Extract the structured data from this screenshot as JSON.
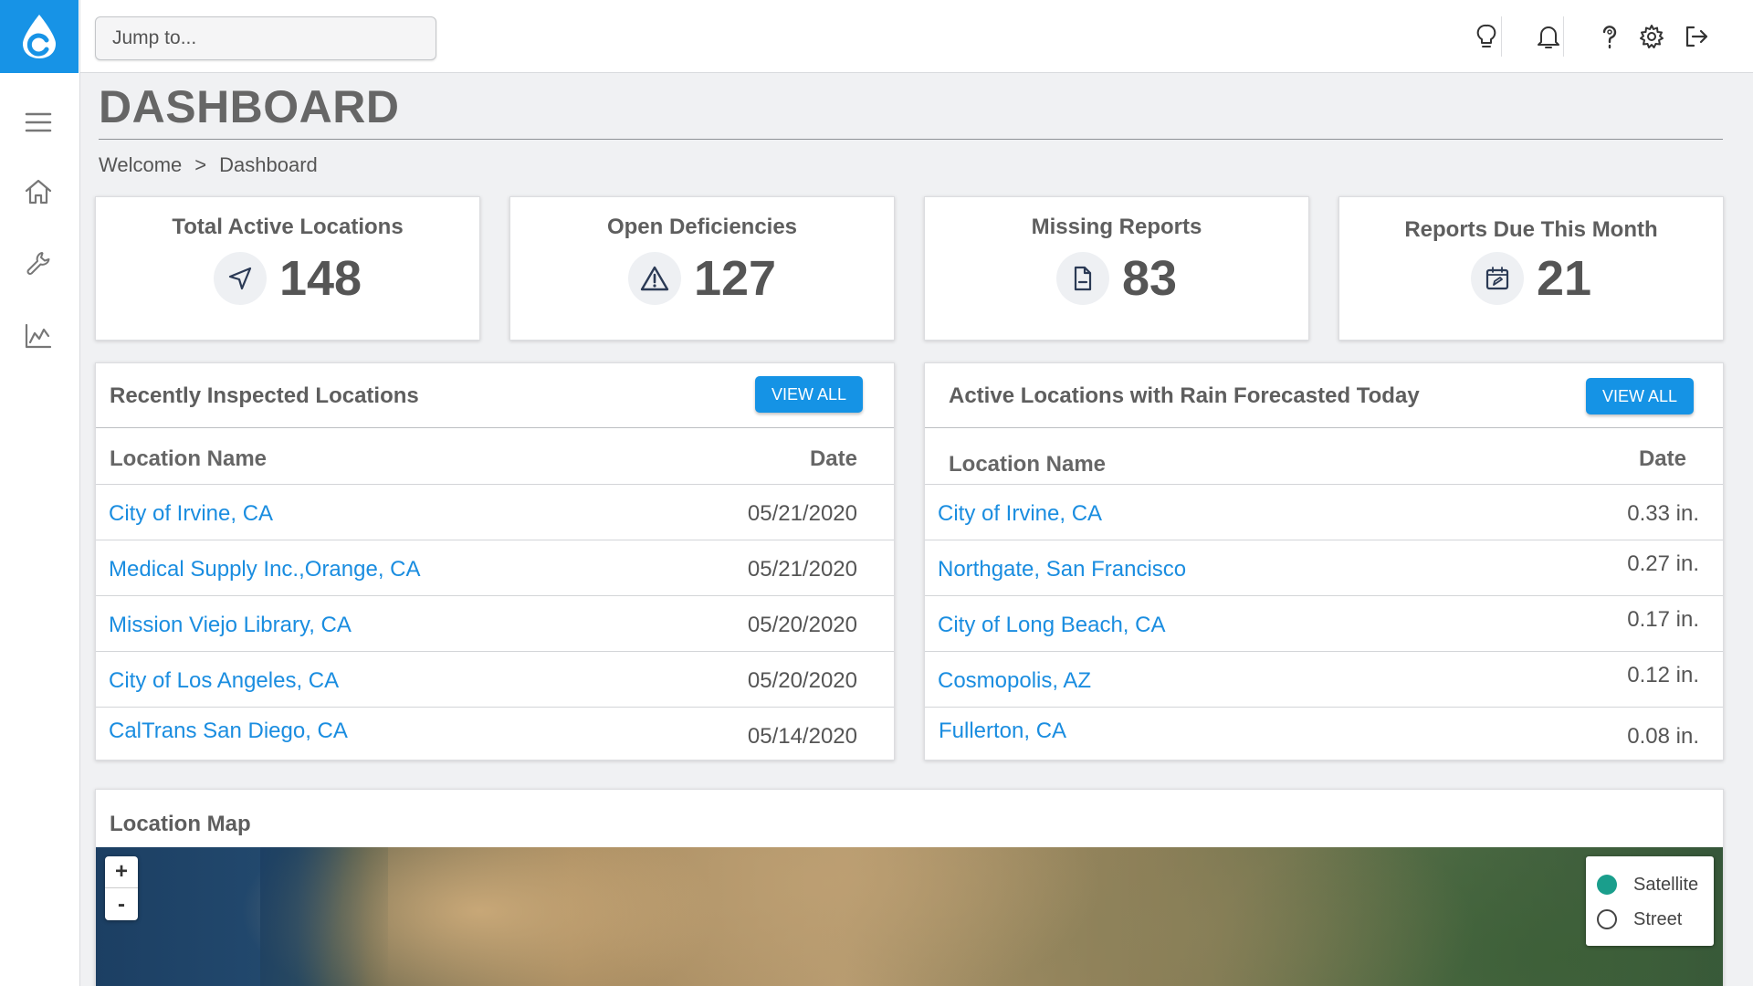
{
  "app": {
    "logo_name": "droplet-logo",
    "brand_color": "#1793e6"
  },
  "search": {
    "placeholder": "Jump to..."
  },
  "sidebar": {
    "items": [
      {
        "name": "menu-icon"
      },
      {
        "name": "home-icon"
      },
      {
        "name": "wrench-icon"
      },
      {
        "name": "chart-icon"
      }
    ]
  },
  "topbar": {
    "icons": [
      "lightbulb-icon",
      "bell-icon",
      "help-icon",
      "gear-icon",
      "logout-icon"
    ]
  },
  "page": {
    "title": "DASHBOARD"
  },
  "breadcrumb": {
    "items": [
      "Welcome",
      "Dashboard"
    ],
    "separator": ">"
  },
  "stats": [
    {
      "label": "Total Active Locations",
      "value": "148",
      "icon": "navigation-arrow-icon"
    },
    {
      "label": "Open Deficiencies",
      "value": "127",
      "icon": "warning-triangle-icon"
    },
    {
      "label": "Missing Reports",
      "value": "83",
      "icon": "document-icon"
    },
    {
      "label": "Reports Due This Month",
      "value": "21",
      "icon": "calendar-edit-icon"
    }
  ],
  "recent": {
    "title": "Recently Inspected Locations",
    "button": "VIEW ALL",
    "columns": {
      "name": "Location Name",
      "date": "Date"
    },
    "rows": [
      {
        "name": "City of Irvine, CA",
        "date": "05/21/2020"
      },
      {
        "name": "Medical Supply Inc.,Orange, CA",
        "date": "05/21/2020"
      },
      {
        "name": "Mission Viejo Library, CA",
        "date": "05/20/2020"
      },
      {
        "name": "City of Los Angeles, CA",
        "date": "05/20/2020"
      },
      {
        "name": "CalTrans San Diego, CA",
        "date": "05/14/2020"
      }
    ]
  },
  "rain": {
    "title": "Active Locations with Rain Forecasted Today",
    "button": "VIEW ALL",
    "columns": {
      "name": "Location Name",
      "date": "Date"
    },
    "rows": [
      {
        "name": "City of Irvine, CA",
        "value": "0.33 in."
      },
      {
        "name": "Northgate, San Francisco",
        "value": "0.27 in."
      },
      {
        "name": "City of Long Beach, CA",
        "value": "0.17 in."
      },
      {
        "name": "Cosmopolis, AZ",
        "value": "0.12 in."
      },
      {
        "name": "Fullerton, CA",
        "value": "0.08 in."
      }
    ]
  },
  "map": {
    "title": "Location Map",
    "zoom_in": "+",
    "zoom_out": "-",
    "layers": [
      {
        "label": "Satellite",
        "selected": true
      },
      {
        "label": "Street",
        "selected": false
      }
    ]
  },
  "colors": {
    "link": "#1a8de0",
    "button": "#1593e5",
    "radio_selected": "#1a9e8c"
  }
}
